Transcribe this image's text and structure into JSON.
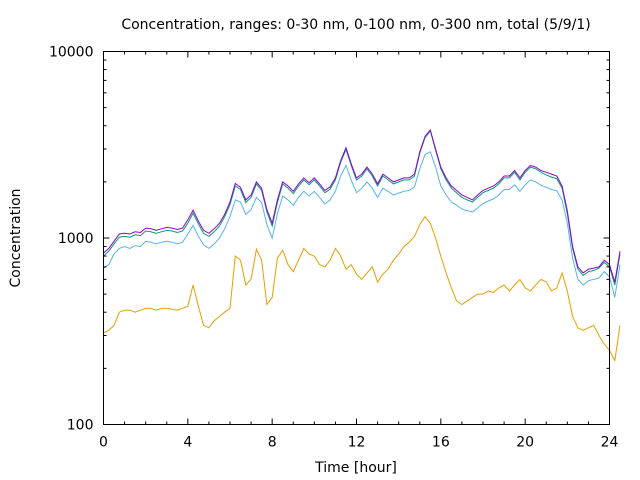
{
  "chart_data": {
    "type": "line",
    "title": "Concentration, ranges: 0-30 nm, 0-100 nm, 0-300 nm, total (5/9/1)",
    "xlabel": "Time [hour]",
    "ylabel": "Concentration",
    "xlim": [
      0,
      24
    ],
    "ylim": [
      100,
      10000
    ],
    "yscale": "log",
    "xticks": [
      0,
      4,
      8,
      12,
      16,
      20,
      24
    ],
    "xtick_labels": [
      "0",
      "4",
      "8",
      "12",
      "16",
      "20",
      "24"
    ],
    "xminor_step": 1,
    "yticks": [
      100,
      1000,
      10000
    ],
    "ytick_labels": [
      "100",
      "1000",
      "10000"
    ],
    "grid": false,
    "legend": "none",
    "x_step": 0.25,
    "series": [
      {
        "name": "total",
        "color": "#9400d3",
        "values": [
          830,
          880,
          960,
          1050,
          1060,
          1050,
          1080,
          1070,
          1130,
          1120,
          1100,
          1120,
          1140,
          1130,
          1110,
          1130,
          1250,
          1410,
          1230,
          1100,
          1060,
          1120,
          1200,
          1340,
          1560,
          1960,
          1870,
          1600,
          1700,
          2000,
          1850,
          1420,
          1200,
          1600,
          2000,
          1900,
          1780,
          1950,
          2100,
          1980,
          2100,
          1950,
          1800,
          1880,
          2100,
          2600,
          3050,
          2500,
          2100,
          2200,
          2400,
          2200,
          1950,
          2200,
          2100,
          2000,
          2050,
          2100,
          2100,
          2200,
          2900,
          3500,
          3800,
          3000,
          2400,
          2100,
          1900,
          1800,
          1700,
          1650,
          1600,
          1700,
          1800,
          1850,
          1900,
          2000,
          2150,
          2150,
          2300,
          2100,
          2300,
          2450,
          2400,
          2300,
          2250,
          2200,
          2150,
          1900,
          1400,
          900,
          700,
          650,
          680,
          690,
          700,
          760,
          720,
          580,
          850
        ]
      },
      {
        "name": "0-300 nm",
        "color": "#009e73",
        "values": [
          800,
          850,
          930,
          1010,
          1020,
          1010,
          1040,
          1030,
          1090,
          1080,
          1060,
          1080,
          1100,
          1090,
          1070,
          1090,
          1200,
          1360,
          1190,
          1060,
          1020,
          1080,
          1160,
          1300,
          1510,
          1900,
          1820,
          1550,
          1650,
          1950,
          1800,
          1380,
          1160,
          1550,
          1950,
          1850,
          1730,
          1900,
          2050,
          1930,
          2050,
          1900,
          1750,
          1830,
          2050,
          2550,
          2980,
          2450,
          2050,
          2150,
          2350,
          2150,
          1900,
          2150,
          2050,
          1950,
          2000,
          2050,
          2050,
          2150,
          2850,
          3450,
          3750,
          2950,
          2350,
          2050,
          1850,
          1750,
          1650,
          1600,
          1560,
          1650,
          1750,
          1800,
          1850,
          1950,
          2100,
          2100,
          2250,
          2050,
          2250,
          2400,
          2350,
          2250,
          2180,
          2120,
          2080,
          1850,
          1350,
          880,
          680,
          630,
          660,
          670,
          690,
          740,
          700,
          560,
          820
        ]
      },
      {
        "name": "0-100 nm",
        "color": "#56b4e9",
        "values": [
          690,
          720,
          820,
          880,
          900,
          880,
          910,
          900,
          960,
          950,
          930,
          950,
          960,
          950,
          930,
          950,
          1050,
          1170,
          1020,
          920,
          880,
          930,
          1000,
          1120,
          1300,
          1600,
          1560,
          1340,
          1420,
          1650,
          1550,
          1180,
          1000,
          1350,
          1680,
          1600,
          1500,
          1650,
          1780,
          1680,
          1780,
          1650,
          1520,
          1600,
          1780,
          2150,
          2450,
          2050,
          1750,
          1850,
          2000,
          1850,
          1650,
          1850,
          1780,
          1700,
          1740,
          1780,
          1800,
          1880,
          2350,
          2800,
          2900,
          2400,
          1900,
          1700,
          1560,
          1500,
          1430,
          1400,
          1380,
          1450,
          1530,
          1580,
          1620,
          1700,
          1820,
          1820,
          1930,
          1780,
          1930,
          2050,
          2000,
          1920,
          1870,
          1820,
          1790,
          1600,
          1200,
          780,
          600,
          560,
          590,
          600,
          610,
          660,
          620,
          480,
          720
        ]
      },
      {
        "name": "0-30 nm",
        "color": "#e69f00",
        "values": [
          310,
          320,
          340,
          400,
          410,
          410,
          400,
          410,
          420,
          420,
          410,
          420,
          420,
          415,
          410,
          420,
          430,
          560,
          430,
          340,
          330,
          360,
          380,
          400,
          420,
          800,
          760,
          560,
          600,
          870,
          760,
          440,
          480,
          780,
          860,
          720,
          660,
          760,
          880,
          820,
          800,
          720,
          700,
          760,
          880,
          800,
          680,
          720,
          640,
          600,
          650,
          700,
          580,
          640,
          680,
          760,
          820,
          900,
          950,
          1020,
          1180,
          1300,
          1200,
          1000,
          800,
          650,
          540,
          460,
          440,
          460,
          480,
          500,
          500,
          520,
          510,
          540,
          560,
          520,
          560,
          600,
          540,
          520,
          560,
          600,
          580,
          520,
          540,
          650,
          520,
          380,
          330,
          320,
          330,
          340,
          300,
          270,
          250,
          220,
          340
        ]
      }
    ]
  }
}
